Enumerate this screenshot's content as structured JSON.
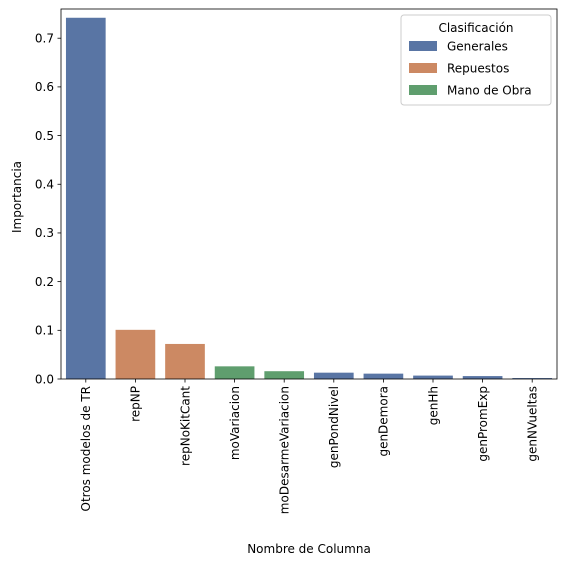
{
  "chart_data": {
    "type": "bar",
    "xlabel": "Nombre de Columna",
    "ylabel": "Importancia",
    "ylim": [
      0,
      0.76
    ],
    "yticks": [
      "0.0",
      "0.1",
      "0.2",
      "0.3",
      "0.4",
      "0.5",
      "0.6",
      "0.7"
    ],
    "categories": [
      "Otros modelos de TR",
      "repNP",
      "repNoKitCant",
      "moVariacion",
      "moDesarmeVariacion",
      "genPondNivel",
      "genDemora",
      "genHh",
      "genPromExp",
      "genNVueltas"
    ],
    "values": [
      0.742,
      0.101,
      0.072,
      0.026,
      0.016,
      0.013,
      0.011,
      0.007,
      0.006,
      0.002
    ],
    "groups": [
      "Generales",
      "Repuestos",
      "Repuestos",
      "Mano de Obra",
      "Mano de Obra",
      "Generales",
      "Generales",
      "Generales",
      "Generales",
      "Generales"
    ],
    "legend": {
      "title": "Clasificación",
      "position": "top-right",
      "entries": [
        {
          "label": "Generales",
          "color": "#5975a4"
        },
        {
          "label": "Repuestos",
          "color": "#cc8963"
        },
        {
          "label": "Mano de Obra",
          "color": "#5f9e6e"
        }
      ]
    },
    "grid": false
  }
}
